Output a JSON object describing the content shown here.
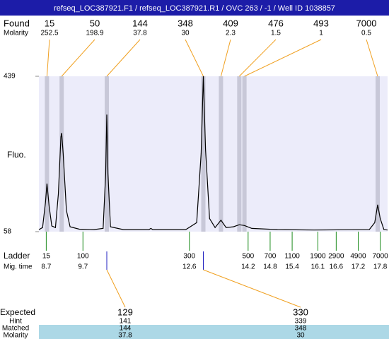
{
  "title": "refseq_LOC387921.F1 / refseq_LOC387921.R1 / OVC 263 / -1 / Well ID 1038857",
  "found": {
    "label": "Found",
    "molarity_label": "Molarity",
    "peaks": [
      {
        "size": 15,
        "molarity": 252.5,
        "time": 8.72
      },
      {
        "size": 50,
        "molarity": 198.9,
        "time": 9.12
      },
      {
        "size": 144,
        "molarity": 37.8,
        "time": 10.35
      },
      {
        "size": 348,
        "molarity": 30,
        "time": 12.98
      },
      {
        "size": 409,
        "molarity": 2.3,
        "time": 13.46
      },
      {
        "size": 476,
        "molarity": 1.5,
        "time": 13.96
      },
      {
        "size": 493,
        "molarity": 1,
        "time": 14.1
      },
      {
        "size": 7000,
        "molarity": 0.5,
        "time": 17.73
      }
    ]
  },
  "chart_data": {
    "type": "line",
    "y_label": "Fluo.",
    "color": "#000000",
    "x": [
      8.5,
      8.6,
      8.68,
      8.72,
      8.78,
      8.85,
      8.95,
      9.03,
      9.1,
      9.12,
      9.16,
      9.25,
      9.35,
      9.6,
      10.0,
      10.25,
      10.32,
      10.35,
      10.38,
      10.45,
      10.8,
      11.5,
      11.55,
      11.6,
      12.5,
      12.8,
      12.92,
      12.98,
      13.04,
      13.15,
      13.3,
      13.46,
      13.6,
      13.8,
      13.96,
      14.1,
      14.3,
      15.0,
      16.0,
      17.5,
      17.65,
      17.73,
      17.8,
      17.9,
      18.0
    ],
    "values": [
      63,
      68,
      130,
      176,
      120,
      72,
      68,
      150,
      290,
      300,
      250,
      110,
      70,
      64,
      63,
      66,
      200,
      345,
      200,
      70,
      63,
      63,
      66,
      63,
      63,
      80,
      250,
      439,
      260,
      90,
      68,
      86,
      68,
      70,
      75,
      73,
      66,
      63,
      62,
      63,
      80,
      124,
      90,
      63,
      62
    ],
    "xlim": [
      8.5,
      18.0
    ],
    "ylim": [
      58,
      439
    ],
    "yticks": [
      58,
      439
    ]
  },
  "ladder": {
    "label": "Ladder",
    "time_label": "Mig. time",
    "sizes": [
      15,
      100,
      300,
      500,
      700,
      1100,
      1900,
      2900,
      4900,
      7000
    ],
    "times": [
      8.7,
      9.7,
      12.6,
      14.2,
      14.8,
      15.4,
      16.1,
      16.6,
      17.2,
      17.8
    ]
  },
  "expected": {
    "label": "Expected",
    "hint_label": "Hint",
    "matched_label": "Matched",
    "molarity_label": "Molarity",
    "columns": [
      {
        "expected": 129,
        "hint": 141,
        "matched": 144,
        "molarity": 37.8,
        "time": 10.35
      },
      {
        "expected": 330,
        "hint": 339,
        "matched": 348,
        "molarity": 30,
        "time": 12.98
      }
    ]
  }
}
